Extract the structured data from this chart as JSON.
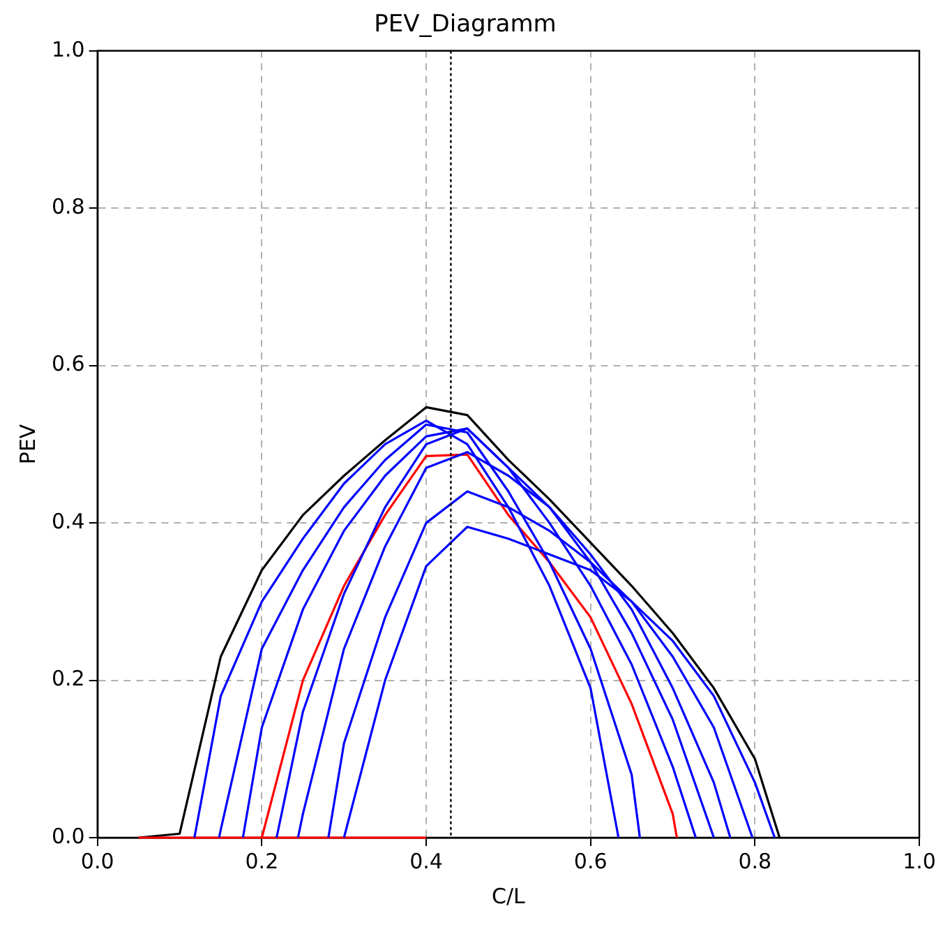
{
  "chart_data": {
    "type": "line",
    "title": "PEV_Diagramm",
    "xlabel": "C/L",
    "ylabel": "PEV",
    "xlim": [
      0,
      1
    ],
    "ylim": [
      0,
      1
    ],
    "xticks": [
      {
        "value": 0,
        "label": "0.0"
      },
      {
        "value": 0.2,
        "label": "0.2"
      },
      {
        "value": 0.4,
        "label": "0.4"
      },
      {
        "value": 0.6,
        "label": "0.6"
      },
      {
        "value": 0.8,
        "label": "0.8"
      },
      {
        "value": 1,
        "label": "1.0"
      }
    ],
    "yticks": [
      {
        "value": 0,
        "label": "0.0"
      },
      {
        "value": 0.2,
        "label": "0.2"
      },
      {
        "value": 0.4,
        "label": "0.4"
      },
      {
        "value": 0.6,
        "label": "0.6"
      },
      {
        "value": 0.8,
        "label": "0.8"
      },
      {
        "value": 1,
        "label": "1.0"
      }
    ],
    "grid": true,
    "legend": false,
    "marker": "none",
    "ref_lines": [
      {
        "axis": "x",
        "value": 0.43,
        "color": "#000000",
        "line_style": "dotted"
      }
    ],
    "series": [
      {
        "color": "#0000ff",
        "x": [
          0.118,
          0.15,
          0.2,
          0.25,
          0.3,
          0.35,
          0.4,
          0.45,
          0.5,
          0.55,
          0.6,
          0.634
        ],
        "values": [
          0,
          0.18,
          0.3,
          0.38,
          0.45,
          0.5,
          0.53,
          0.5,
          0.42,
          0.32,
          0.19,
          0
        ]
      },
      {
        "color": "#0000ff",
        "x": [
          0.148,
          0.15,
          0.2,
          0.25,
          0.3,
          0.35,
          0.4,
          0.45,
          0.5,
          0.55,
          0.6,
          0.65,
          0.66
        ],
        "values": [
          0,
          0.01,
          0.24,
          0.34,
          0.42,
          0.48,
          0.525,
          0.515,
          0.44,
          0.35,
          0.24,
          0.08,
          0
        ]
      },
      {
        "color": "#0000ff",
        "x": [
          0.177,
          0.2,
          0.25,
          0.3,
          0.35,
          0.4,
          0.45,
          0.5,
          0.55,
          0.6,
          0.65,
          0.7,
          0.728
        ],
        "values": [
          0,
          0.14,
          0.29,
          0.39,
          0.46,
          0.51,
          0.52,
          0.47,
          0.4,
          0.32,
          0.22,
          0.09,
          0
        ]
      },
      {
        "color": "#0000ff",
        "x": [
          0.218,
          0.25,
          0.3,
          0.35,
          0.4,
          0.45,
          0.5,
          0.55,
          0.6,
          0.65,
          0.7,
          0.75
        ],
        "values": [
          0,
          0.16,
          0.31,
          0.42,
          0.5,
          0.52,
          0.47,
          0.42,
          0.35,
          0.26,
          0.15,
          0
        ]
      },
      {
        "color": "#0000ff",
        "x": [
          0.244,
          0.25,
          0.3,
          0.35,
          0.4,
          0.45,
          0.5,
          0.55,
          0.6,
          0.65,
          0.7,
          0.75,
          0.77
        ],
        "values": [
          0,
          0.03,
          0.24,
          0.37,
          0.47,
          0.49,
          0.46,
          0.42,
          0.36,
          0.29,
          0.19,
          0.07,
          0
        ]
      },
      {
        "color": "#0000ff",
        "x": [
          0.281,
          0.3,
          0.35,
          0.4,
          0.45,
          0.5,
          0.55,
          0.6,
          0.65,
          0.7,
          0.75,
          0.797
        ],
        "values": [
          0,
          0.12,
          0.28,
          0.4,
          0.44,
          0.42,
          0.39,
          0.35,
          0.3,
          0.23,
          0.14,
          0
        ]
      },
      {
        "color": "#0000ff",
        "x": [
          0.3,
          0.35,
          0.4,
          0.45,
          0.5,
          0.55,
          0.6,
          0.65,
          0.7,
          0.75,
          0.8,
          0.824
        ],
        "values": [
          0,
          0.2,
          0.345,
          0.395,
          0.38,
          0.36,
          0.34,
          0.3,
          0.25,
          0.18,
          0.07,
          0
        ]
      },
      {
        "color": "#ff0000",
        "x": [
          0.05,
          0.4
        ],
        "values": [
          0,
          0
        ]
      },
      {
        "color": "#ff0000",
        "x": [
          0.2,
          0.25,
          0.3,
          0.35,
          0.4,
          0.45,
          0.5,
          0.55,
          0.6,
          0.65,
          0.7,
          0.705
        ],
        "values": [
          0,
          0.2,
          0.32,
          0.41,
          0.485,
          0.487,
          0.41,
          0.35,
          0.28,
          0.17,
          0.03,
          0
        ]
      },
      {
        "color": "#000000",
        "x": [
          0.05,
          0.1,
          0.15,
          0.2,
          0.25,
          0.3,
          0.35,
          0.4,
          0.45,
          0.5,
          0.55,
          0.6,
          0.65,
          0.7,
          0.75,
          0.8,
          0.83
        ],
        "values": [
          0,
          0.005,
          0.23,
          0.34,
          0.41,
          0.46,
          0.505,
          0.547,
          0.537,
          0.48,
          0.43,
          0.375,
          0.32,
          0.26,
          0.19,
          0.1,
          0
        ]
      }
    ]
  }
}
